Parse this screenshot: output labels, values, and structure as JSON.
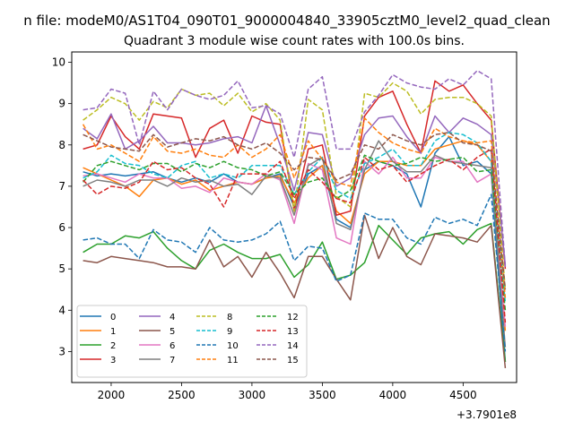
{
  "suptitle": "n file: modeM0/AS1T04_090T01_9000004840_33905cztM0_level2_quad_clean",
  "chart_data": {
    "type": "line",
    "title": "Quadrant 3 module wise count rates with 100.0s bins.",
    "xlabel": "",
    "ylabel": "",
    "x_offset_label": "+3.7901e8",
    "xlim": [
      1720,
      4880
    ],
    "ylim": [
      2.25,
      10.25
    ],
    "xticks": [
      2000,
      2500,
      3000,
      3500,
      4000,
      4500
    ],
    "xtick_labels": [
      "2000",
      "2500",
      "3000",
      "3500",
      "4000",
      "4500"
    ],
    "yticks": [
      3,
      4,
      5,
      6,
      7,
      8,
      9,
      10
    ],
    "ytick_labels": [
      "3",
      "4",
      "5",
      "6",
      "7",
      "8",
      "9",
      "10"
    ],
    "grid": false,
    "legend_position": "lower-left",
    "legend_columns": 4,
    "x": [
      1800,
      1900,
      2000,
      2100,
      2200,
      2300,
      2400,
      2500,
      2600,
      2700,
      2800,
      2900,
      3000,
      3100,
      3200,
      3300,
      3400,
      3500,
      3600,
      3700,
      3800,
      3900,
      4000,
      4100,
      4200,
      4300,
      4400,
      4500,
      4600,
      4700,
      4800
    ],
    "series": [
      {
        "name": "0",
        "color": "#1f77b4",
        "dash": "solid",
        "values": [
          7.35,
          7.25,
          7.3,
          7.25,
          7.3,
          7.35,
          7.2,
          7.1,
          7.2,
          7.1,
          7.3,
          7.1,
          7.05,
          7.2,
          7.3,
          6.5,
          7.3,
          7.5,
          6.2,
          6.0,
          7.4,
          7.6,
          7.5,
          7.3,
          6.5,
          7.8,
          8.2,
          7.5,
          7.6,
          7.3,
          2.75
        ]
      },
      {
        "name": "1",
        "color": "#ff7f0e",
        "dash": "solid",
        "values": [
          7.45,
          7.3,
          7.15,
          7.0,
          6.75,
          7.15,
          7.2,
          7.05,
          7.15,
          6.9,
          7.0,
          7.1,
          7.05,
          7.2,
          7.25,
          6.6,
          7.2,
          7.5,
          6.4,
          6.1,
          7.3,
          7.6,
          7.6,
          7.5,
          7.5,
          7.9,
          8.0,
          8.1,
          8.0,
          7.6,
          3.5
        ]
      },
      {
        "name": "2",
        "color": "#2ca02c",
        "dash": "solid",
        "values": [
          5.4,
          5.6,
          5.6,
          5.8,
          5.75,
          5.9,
          5.5,
          5.2,
          5.0,
          5.45,
          5.6,
          5.4,
          5.25,
          5.25,
          5.35,
          4.8,
          5.1,
          5.65,
          4.75,
          4.85,
          5.15,
          6.05,
          5.7,
          5.35,
          5.75,
          5.85,
          5.9,
          5.6,
          5.95,
          6.1,
          2.75
        ]
      },
      {
        "name": "3",
        "color": "#d62728",
        "dash": "solid",
        "values": [
          7.9,
          8.0,
          8.7,
          8.2,
          7.9,
          8.75,
          8.7,
          8.65,
          7.7,
          8.4,
          8.6,
          7.8,
          8.7,
          8.55,
          8.5,
          6.4,
          7.9,
          8.0,
          6.3,
          6.4,
          8.7,
          9.15,
          9.3,
          8.5,
          7.8,
          9.55,
          9.3,
          9.45,
          9.0,
          8.6,
          5.0
        ]
      },
      {
        "name": "4",
        "color": "#9467bd",
        "dash": "solid",
        "values": [
          8.4,
          8.15,
          8.75,
          7.9,
          8.1,
          8.45,
          8.05,
          8.05,
          8.0,
          8.05,
          8.15,
          8.2,
          8.05,
          8.95,
          8.0,
          6.9,
          8.3,
          8.25,
          7.0,
          7.2,
          8.25,
          8.65,
          8.7,
          8.2,
          7.8,
          8.7,
          8.3,
          8.65,
          8.5,
          8.25,
          5.1
        ]
      },
      {
        "name": "5",
        "color": "#8c564b",
        "dash": "solid",
        "values": [
          5.2,
          5.15,
          5.3,
          5.25,
          5.2,
          5.15,
          5.05,
          5.05,
          5.0,
          5.7,
          5.05,
          5.3,
          4.8,
          5.4,
          4.9,
          4.3,
          5.3,
          5.3,
          4.75,
          4.25,
          6.3,
          5.25,
          6.0,
          5.3,
          5.1,
          5.85,
          5.8,
          5.75,
          5.65,
          6.05,
          2.6
        ]
      },
      {
        "name": "6",
        "color": "#e377c2",
        "dash": "solid",
        "values": [
          7.25,
          7.3,
          7.2,
          7.1,
          7.3,
          7.2,
          7.2,
          6.95,
          7.0,
          6.85,
          7.2,
          7.1,
          7.05,
          7.3,
          7.15,
          6.1,
          7.55,
          7.4,
          5.75,
          5.6,
          7.6,
          7.3,
          7.7,
          7.2,
          7.2,
          7.7,
          7.6,
          7.6,
          7.1,
          7.3,
          3.6
        ]
      },
      {
        "name": "7",
        "color": "#7f7f7f",
        "dash": "solid",
        "values": [
          7.0,
          7.15,
          7.1,
          7.0,
          7.15,
          7.15,
          7.0,
          7.2,
          7.1,
          7.15,
          7.0,
          7.05,
          6.8,
          7.25,
          7.2,
          6.3,
          7.5,
          7.7,
          6.1,
          5.95,
          7.4,
          8.1,
          7.6,
          7.35,
          7.35,
          7.75,
          7.6,
          7.55,
          7.5,
          7.45,
          3.1
        ]
      },
      {
        "name": "8",
        "color": "#bcbd22",
        "dash": "dashed",
        "values": [
          8.6,
          8.85,
          9.15,
          9.0,
          8.6,
          9.05,
          8.9,
          9.35,
          9.2,
          9.25,
          8.95,
          9.25,
          8.8,
          9.0,
          8.6,
          6.4,
          9.1,
          8.85,
          6.75,
          6.5,
          9.25,
          9.15,
          9.5,
          9.3,
          8.75,
          9.1,
          9.15,
          9.15,
          9.0,
          8.7,
          4.5
        ]
      },
      {
        "name": "9",
        "color": "#17becf",
        "dash": "dashed",
        "values": [
          7.2,
          7.35,
          7.75,
          7.55,
          7.5,
          7.3,
          7.2,
          7.5,
          7.6,
          7.2,
          7.3,
          7.2,
          7.5,
          7.5,
          7.5,
          6.8,
          7.35,
          7.7,
          6.9,
          6.7,
          7.55,
          7.7,
          7.9,
          7.5,
          7.5,
          8.1,
          8.3,
          8.25,
          8.05,
          7.6,
          4.2
        ]
      },
      {
        "name": "10",
        "color": "#1f77b4",
        "dash": "dashed",
        "values": [
          5.7,
          5.75,
          5.6,
          5.6,
          5.25,
          5.95,
          5.7,
          5.65,
          5.4,
          6.0,
          5.7,
          5.65,
          5.7,
          5.85,
          6.15,
          5.2,
          5.55,
          5.5,
          4.7,
          4.85,
          6.35,
          6.2,
          6.2,
          5.75,
          5.6,
          6.25,
          6.1,
          6.2,
          6.05,
          6.8,
          3.0
        ]
      },
      {
        "name": "11",
        "color": "#ff7f0e",
        "dash": "dashed",
        "values": [
          8.5,
          7.9,
          8.0,
          7.8,
          7.6,
          8.2,
          7.85,
          7.8,
          7.9,
          7.75,
          7.7,
          8.0,
          7.7,
          7.9,
          8.25,
          7.2,
          8.1,
          7.65,
          7.1,
          7.0,
          8.65,
          8.3,
          8.05,
          7.9,
          7.8,
          8.4,
          8.2,
          8.1,
          8.05,
          8.1,
          4.3
        ]
      },
      {
        "name": "12",
        "color": "#2ca02c",
        "dash": "dashed",
        "values": [
          7.1,
          7.5,
          7.6,
          7.5,
          7.4,
          7.55,
          7.55,
          7.35,
          7.55,
          7.45,
          7.6,
          7.45,
          7.4,
          7.25,
          7.35,
          6.8,
          7.1,
          7.2,
          6.7,
          6.9,
          7.75,
          7.6,
          7.5,
          7.55,
          7.7,
          7.6,
          7.65,
          7.7,
          7.35,
          7.4,
          4.0
        ]
      },
      {
        "name": "13",
        "color": "#d62728",
        "dash": "dashed",
        "values": [
          7.15,
          6.8,
          7.0,
          6.95,
          7.1,
          7.6,
          7.4,
          7.45,
          7.2,
          7.05,
          6.5,
          7.3,
          7.3,
          7.3,
          7.6,
          6.7,
          7.4,
          7.1,
          6.7,
          6.6,
          7.7,
          7.4,
          7.5,
          7.1,
          7.3,
          7.5,
          7.65,
          7.4,
          7.7,
          7.9,
          3.7
        ]
      },
      {
        "name": "14",
        "color": "#9467bd",
        "dash": "dashed",
        "values": [
          8.85,
          8.9,
          9.35,
          9.25,
          8.0,
          9.3,
          8.85,
          9.35,
          9.2,
          9.1,
          9.2,
          9.55,
          8.9,
          8.95,
          8.75,
          7.7,
          9.35,
          9.65,
          7.9,
          7.9,
          8.8,
          9.2,
          9.7,
          9.5,
          9.4,
          9.35,
          9.6,
          9.45,
          9.8,
          9.6,
          5.05
        ]
      },
      {
        "name": "15",
        "color": "#8c564b",
        "dash": "dashed",
        "values": [
          8.25,
          8.1,
          7.95,
          7.9,
          7.85,
          8.25,
          7.95,
          8.05,
          8.15,
          8.1,
          8.2,
          8.0,
          7.9,
          8.05,
          7.8,
          7.4,
          7.7,
          7.65,
          7.15,
          7.3,
          8.0,
          7.9,
          8.25,
          8.1,
          8.0,
          8.25,
          8.3,
          8.05,
          8.0,
          7.85,
          4.5
        ]
      }
    ]
  }
}
